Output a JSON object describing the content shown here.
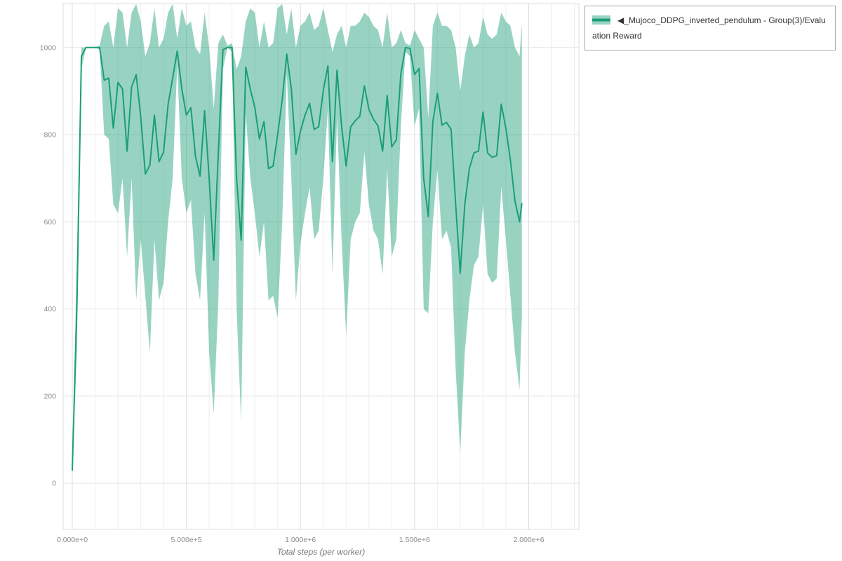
{
  "page": {
    "background": "#ffffff"
  },
  "colors": {
    "grid_minor": "#eeeeee",
    "grid_major": "#dedede",
    "grid_horizontal": "#e4e4e4",
    "plot_border": "#dcdcdc",
    "tick_label": "#8c8c8c",
    "axis_title": "#7a7a7a",
    "legend_border": "#a9a9a9",
    "legend_text": "#333333"
  },
  "chart_data": {
    "type": "line",
    "title": "",
    "xlabel": "Total steps (per worker)",
    "ylabel": "",
    "xlim": [
      -40000,
      2220000
    ],
    "ylim": [
      -106,
      1101
    ],
    "grid": true,
    "legend_position": "top-right",
    "x_grid": {
      "min": 0,
      "max": 2200000,
      "minor_step": 100000,
      "major_step": 500000
    },
    "xticks": [
      {
        "value": 0,
        "label": "0.000e+0"
      },
      {
        "value": 500000,
        "label": "5.000e+5"
      },
      {
        "value": 1000000,
        "label": "1.000e+6"
      },
      {
        "value": 1500000,
        "label": "1.500e+6"
      },
      {
        "value": 2000000,
        "label": "2.000e+6"
      }
    ],
    "yticks": [
      {
        "value": 0,
        "label": "0"
      },
      {
        "value": 200,
        "label": "200"
      },
      {
        "value": 400,
        "label": "400"
      },
      {
        "value": 600,
        "label": "600"
      },
      {
        "value": 800,
        "label": "800"
      },
      {
        "value": 1000,
        "label": "1000"
      }
    ],
    "series": [
      {
        "name": "◀_Mujoco_DDPG_inverted_pendulum - Group(3)/Evaluation Reward",
        "color": "#1b9e77",
        "band_opacity": 0.45,
        "x": [
          0,
          20000,
          40000,
          60000,
          80000,
          100000,
          120000,
          140000,
          160000,
          180000,
          200000,
          220000,
          240000,
          260000,
          280000,
          300000,
          320000,
          340000,
          360000,
          380000,
          400000,
          420000,
          440000,
          460000,
          480000,
          500000,
          520000,
          540000,
          560000,
          580000,
          600000,
          620000,
          640000,
          660000,
          680000,
          700000,
          720000,
          740000,
          760000,
          780000,
          800000,
          820000,
          840000,
          860000,
          880000,
          900000,
          920000,
          940000,
          960000,
          980000,
          1000000,
          1020000,
          1040000,
          1060000,
          1080000,
          1100000,
          1120000,
          1140000,
          1160000,
          1180000,
          1200000,
          1220000,
          1240000,
          1260000,
          1280000,
          1300000,
          1320000,
          1340000,
          1360000,
          1380000,
          1400000,
          1420000,
          1440000,
          1460000,
          1480000,
          1500000,
          1520000,
          1540000,
          1560000,
          1580000,
          1600000,
          1620000,
          1640000,
          1660000,
          1680000,
          1700000,
          1720000,
          1740000,
          1760000,
          1780000,
          1800000,
          1820000,
          1840000,
          1860000,
          1880000,
          1900000,
          1920000,
          1940000,
          1960000,
          1970000
        ],
        "mean": [
          30,
          400,
          980,
          1000,
          1000,
          1000,
          1000,
          925,
          930,
          815,
          920,
          905,
          762,
          910,
          938,
          840,
          710,
          730,
          845,
          738,
          760,
          870,
          930,
          992,
          905,
          845,
          862,
          750,
          705,
          855,
          700,
          512,
          760,
          995,
          1000,
          1000,
          700,
          558,
          955,
          905,
          862,
          790,
          830,
          722,
          728,
          800,
          880,
          985,
          905,
          755,
          808,
          845,
          872,
          812,
          818,
          902,
          958,
          738,
          948,
          820,
          728,
          818,
          832,
          842,
          912,
          858,
          835,
          820,
          762,
          890,
          772,
          788,
          940,
          1000,
          998,
          938,
          952,
          700,
          612,
          830,
          895,
          822,
          828,
          812,
          640,
          482,
          640,
          722,
          758,
          762,
          852,
          758,
          748,
          752,
          870,
          815,
          742,
          648,
          600,
          642
        ],
        "lower": [
          25,
          300,
          950,
          1000,
          1000,
          1000,
          995,
          800,
          790,
          640,
          620,
          700,
          520,
          700,
          420,
          560,
          430,
          300,
          560,
          420,
          460,
          600,
          700,
          960,
          700,
          620,
          650,
          480,
          420,
          620,
          300,
          160,
          420,
          950,
          1000,
          990,
          400,
          140,
          850,
          700,
          620,
          520,
          600,
          420,
          430,
          380,
          600,
          940,
          700,
          420,
          550,
          620,
          680,
          560,
          580,
          700,
          860,
          480,
          840,
          560,
          340,
          560,
          600,
          620,
          760,
          640,
          580,
          560,
          480,
          720,
          520,
          560,
          820,
          990,
          980,
          820,
          860,
          400,
          390,
          600,
          720,
          560,
          580,
          540,
          260,
          70,
          300,
          420,
          500,
          520,
          640,
          480,
          460,
          470,
          680,
          560,
          430,
          300,
          215,
          380
        ],
        "upper": [
          40,
          520,
          1000,
          1000,
          1000,
          1000,
          1005,
          1050,
          1060,
          1000,
          1090,
          1080,
          1000,
          1080,
          1100,
          1060,
          980,
          1010,
          1090,
          1000,
          1020,
          1080,
          1100,
          1020,
          1090,
          1050,
          1060,
          1000,
          985,
          1080,
          1000,
          860,
          1010,
          1030,
          1005,
          1010,
          950,
          980,
          1060,
          1090,
          1080,
          1000,
          1060,
          1000,
          1010,
          1090,
          1100,
          1030,
          1090,
          1000,
          1050,
          1060,
          1080,
          1040,
          1050,
          1090,
          1040,
          990,
          1030,
          1050,
          1000,
          1050,
          1050,
          1060,
          1080,
          1070,
          1050,
          1040,
          1000,
          1080,
          1000,
          1010,
          1040,
          1010,
          1005,
          1040,
          1020,
          1000,
          840,
          1050,
          1080,
          1050,
          1050,
          1040,
          1000,
          900,
          980,
          1030,
          1000,
          1010,
          1070,
          1030,
          1020,
          1030,
          1080,
          1060,
          1050,
          1000,
          980,
          1055
        ]
      }
    ]
  }
}
